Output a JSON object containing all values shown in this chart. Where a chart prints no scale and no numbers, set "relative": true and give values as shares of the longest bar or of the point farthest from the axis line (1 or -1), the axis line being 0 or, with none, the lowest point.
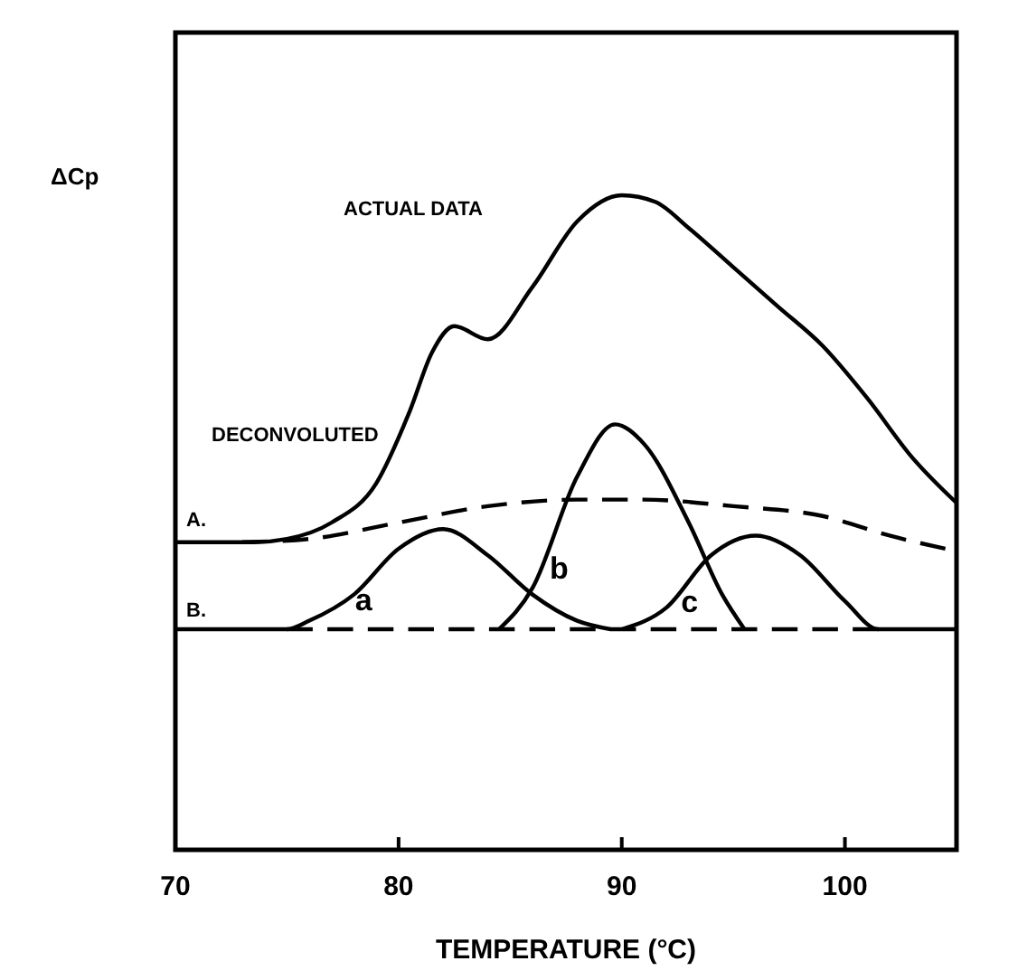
{
  "chart_data": {
    "type": "line",
    "relative": true,
    "xlabel": "TEMPERATURE (°C)",
    "ylabel": "ΔCp",
    "xlim": [
      70,
      105
    ],
    "xticks": [
      70,
      80,
      90,
      100
    ],
    "grid": false,
    "series": [
      {
        "color": "#000000",
        "line_style": "solid",
        "x": [
          70,
          73.5,
          75,
          77,
          79,
          80.5,
          81.5,
          82.5,
          84,
          86,
          88,
          90,
          91.5,
          93,
          95,
          97,
          99,
          101,
          103,
          105
        ],
        "values": [
          0.47,
          0.47,
          0.475,
          0.5,
          0.56,
          0.67,
          0.76,
          0.8,
          0.78,
          0.86,
          0.96,
          1.0,
          0.99,
          0.95,
          0.89,
          0.83,
          0.77,
          0.69,
          0.6,
          0.53
        ]
      },
      {
        "color": "#000000",
        "line_style": "dashed",
        "x": [
          73,
          76,
          80,
          84,
          88,
          91,
          95,
          99,
          102,
          104.5
        ],
        "values": [
          0.47,
          0.475,
          0.5,
          0.525,
          0.535,
          0.535,
          0.525,
          0.51,
          0.48,
          0.46
        ]
      },
      {
        "name": "a",
        "color": "#000000",
        "line_style": "solid",
        "x": [
          70,
          75,
          76,
          78,
          80,
          82,
          84,
          86,
          88,
          89.5
        ],
        "values": [
          0.337,
          0.337,
          0.35,
          0.39,
          0.46,
          0.49,
          0.45,
          0.39,
          0.35,
          0.337
        ]
      },
      {
        "name": "b",
        "color": "#000000",
        "line_style": "solid",
        "x": [
          84.5,
          86,
          88,
          89.7,
          91,
          93,
          94.5,
          95.5
        ],
        "values": [
          0.337,
          0.4,
          0.57,
          0.65,
          0.62,
          0.5,
          0.39,
          0.337
        ]
      },
      {
        "name": "c",
        "color": "#000000",
        "line_style": "solid",
        "x": [
          90,
          92,
          94,
          96,
          98,
          100,
          101.5,
          105
        ],
        "values": [
          0.337,
          0.37,
          0.45,
          0.48,
          0.45,
          0.38,
          0.337,
          0.337
        ]
      },
      {
        "color": "#000000",
        "line_style": "dashed",
        "x": [
          75,
          101.5
        ],
        "values": [
          0.337,
          0.337
        ]
      }
    ],
    "annotations": [
      "ACTUAL DATA",
      "A.",
      "DECONVOLUTED",
      "B."
    ]
  }
}
